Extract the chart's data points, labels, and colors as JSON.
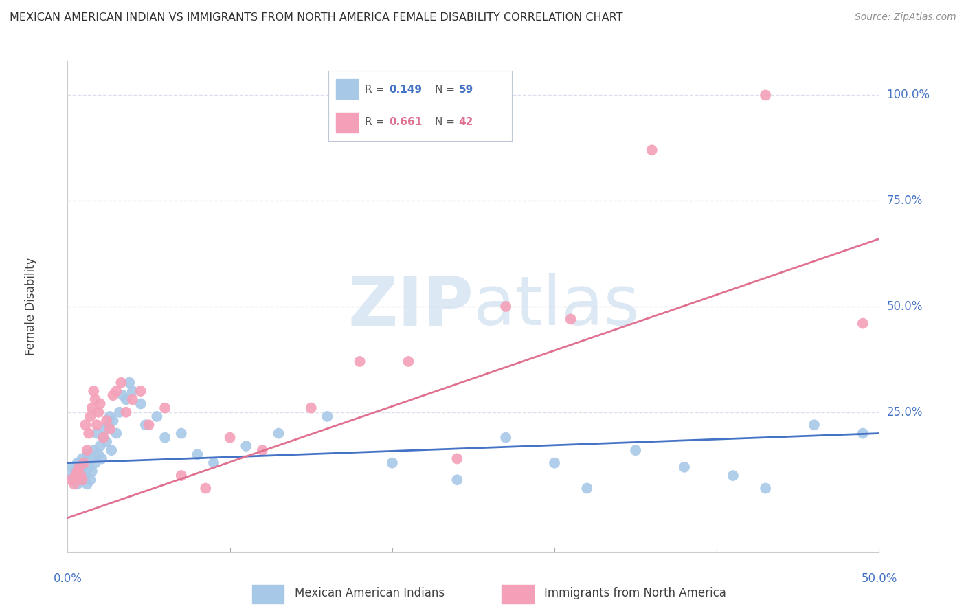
{
  "title": "MEXICAN AMERICAN INDIAN VS IMMIGRANTS FROM NORTH AMERICA FEMALE DISABILITY CORRELATION CHART",
  "source": "Source: ZipAtlas.com",
  "ylabel": "Female Disability",
  "xlim": [
    0.0,
    0.5
  ],
  "ylim": [
    -0.08,
    1.08
  ],
  "ytick_labels": [
    "100.0%",
    "75.0%",
    "50.0%",
    "25.0%"
  ],
  "ytick_values": [
    1.0,
    0.75,
    0.5,
    0.25
  ],
  "xtick_values": [
    0.0,
    0.1,
    0.2,
    0.3,
    0.4,
    0.5
  ],
  "legend_blue_r": "0.149",
  "legend_blue_n": "59",
  "legend_pink_r": "0.661",
  "legend_pink_n": "42",
  "legend_label_blue": "Mexican American Indians",
  "legend_label_pink": "Immigrants from North America",
  "blue_color": "#a8c8e8",
  "pink_color": "#f4a0b8",
  "blue_line_color": "#4472c4",
  "pink_line_color": "#e8709090",
  "title_color": "#303030",
  "source_color": "#909090",
  "axis_label_color": "#404040",
  "tick_label_color": "#4472c4",
  "watermark_text": "ZIPatlas",
  "watermark_color": "#dce8f4",
  "blue_scatter_x": [
    0.002,
    0.003,
    0.004,
    0.005,
    0.006,
    0.006,
    0.007,
    0.008,
    0.008,
    0.009,
    0.01,
    0.01,
    0.011,
    0.012,
    0.012,
    0.013,
    0.014,
    0.015,
    0.015,
    0.016,
    0.017,
    0.018,
    0.019,
    0.02,
    0.021,
    0.022,
    0.023,
    0.024,
    0.025,
    0.026,
    0.027,
    0.028,
    0.03,
    0.032,
    0.034,
    0.036,
    0.038,
    0.04,
    0.045,
    0.048,
    0.055,
    0.06,
    0.07,
    0.08,
    0.09,
    0.11,
    0.13,
    0.16,
    0.2,
    0.24,
    0.27,
    0.3,
    0.32,
    0.35,
    0.38,
    0.41,
    0.43,
    0.46,
    0.49
  ],
  "blue_scatter_y": [
    0.12,
    0.1,
    0.09,
    0.11,
    0.08,
    0.13,
    0.1,
    0.12,
    0.09,
    0.14,
    0.11,
    0.13,
    0.1,
    0.08,
    0.15,
    0.12,
    0.09,
    0.14,
    0.11,
    0.16,
    0.13,
    0.2,
    0.15,
    0.17,
    0.14,
    0.19,
    0.21,
    0.18,
    0.22,
    0.24,
    0.16,
    0.23,
    0.2,
    0.25,
    0.29,
    0.28,
    0.32,
    0.3,
    0.27,
    0.22,
    0.24,
    0.19,
    0.2,
    0.15,
    0.13,
    0.17,
    0.2,
    0.24,
    0.13,
    0.09,
    0.19,
    0.13,
    0.07,
    0.16,
    0.12,
    0.1,
    0.07,
    0.22,
    0.2
  ],
  "pink_scatter_x": [
    0.002,
    0.004,
    0.005,
    0.006,
    0.007,
    0.008,
    0.009,
    0.01,
    0.011,
    0.012,
    0.013,
    0.014,
    0.015,
    0.016,
    0.017,
    0.018,
    0.019,
    0.02,
    0.022,
    0.024,
    0.026,
    0.028,
    0.03,
    0.033,
    0.036,
    0.04,
    0.045,
    0.05,
    0.06,
    0.07,
    0.085,
    0.1,
    0.12,
    0.15,
    0.18,
    0.21,
    0.24,
    0.27,
    0.31,
    0.36,
    0.43,
    0.49
  ],
  "pink_scatter_y": [
    0.09,
    0.08,
    0.1,
    0.11,
    0.12,
    0.1,
    0.09,
    0.13,
    0.22,
    0.16,
    0.2,
    0.24,
    0.26,
    0.3,
    0.28,
    0.22,
    0.25,
    0.27,
    0.19,
    0.23,
    0.21,
    0.29,
    0.3,
    0.32,
    0.25,
    0.28,
    0.3,
    0.22,
    0.26,
    0.1,
    0.07,
    0.19,
    0.16,
    0.26,
    0.37,
    0.37,
    0.14,
    0.5,
    0.47,
    0.87,
    1.0,
    0.46
  ],
  "blue_line_x0": 0.0,
  "blue_line_x1": 0.5,
  "blue_line_y0": 0.13,
  "blue_line_y1": 0.2,
  "pink_line_x0": 0.0,
  "pink_line_x1": 0.5,
  "pink_line_y0": 0.0,
  "pink_line_y1": 0.66,
  "grid_color": "#dde0ec",
  "background_color": "#ffffff",
  "figsize": [
    14.06,
    8.92
  ],
  "dpi": 100
}
